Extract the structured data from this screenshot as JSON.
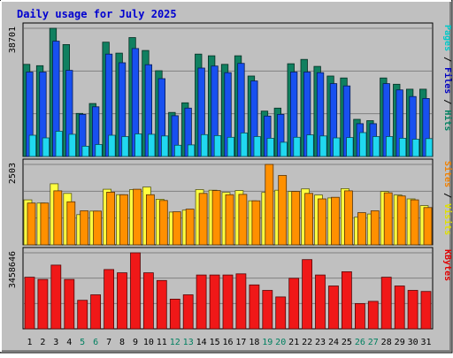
{
  "title": "Daily usage for July 2025",
  "chart_data": [
    {
      "type": "bar",
      "panel": "hits-files-pages",
      "categories": [
        "1",
        "2",
        "3",
        "4",
        "5",
        "6",
        "7",
        "8",
        "9",
        "10",
        "11",
        "12",
        "13",
        "14",
        "15",
        "16",
        "17",
        "18",
        "19",
        "20",
        "21",
        "22",
        "23",
        "24",
        "25",
        "26",
        "27",
        "28",
        "29",
        "30",
        "31"
      ],
      "weekend_days": [
        "5",
        "6",
        "12",
        "13",
        "19",
        "20",
        "26",
        "27"
      ],
      "ytick_label": "38701",
      "ylim": [
        0,
        38701
      ],
      "side_labels": [
        {
          "text": "Pages",
          "color": "#00c8c8"
        },
        {
          "text": " / ",
          "color": "#000000"
        },
        {
          "text": "Files",
          "color": "#0000c0"
        },
        {
          "text": " / ",
          "color": "#000000"
        },
        {
          "text": "Hits",
          "color": "#008060"
        }
      ],
      "series": [
        {
          "name": "Hits",
          "color": "#108060",
          "values": [
            27800,
            27400,
            38700,
            33800,
            13000,
            16000,
            34500,
            31200,
            35900,
            32000,
            25900,
            13300,
            16200,
            30900,
            30400,
            27800,
            30400,
            24300,
            13700,
            14600,
            28000,
            29300,
            27200,
            24300,
            23700,
            11200,
            10800,
            23700,
            21800,
            20300,
            20300
          ]
        },
        {
          "name": "Files",
          "color": "#1850f0",
          "values": [
            25500,
            25500,
            34800,
            26000,
            12700,
            15000,
            30900,
            28300,
            32600,
            27700,
            23500,
            12300,
            14600,
            26700,
            27300,
            25300,
            28100,
            22800,
            12200,
            12700,
            25500,
            25500,
            25300,
            22000,
            21300,
            9900,
            9900,
            22000,
            20100,
            18100,
            17500
          ]
        },
        {
          "name": "Pages",
          "color": "#20d8f0",
          "values": [
            6400,
            5600,
            7600,
            6700,
            3100,
            3600,
            6400,
            6000,
            6800,
            6700,
            6200,
            3400,
            3500,
            6600,
            6300,
            5800,
            7100,
            6000,
            5500,
            4300,
            5800,
            6500,
            6200,
            5600,
            5700,
            7200,
            6000,
            6000,
            5500,
            5200,
            5400
          ]
        }
      ]
    },
    {
      "type": "bar",
      "panel": "visits-sites",
      "categories": [
        "1",
        "2",
        "3",
        "4",
        "5",
        "6",
        "7",
        "8",
        "9",
        "10",
        "11",
        "12",
        "13",
        "14",
        "15",
        "16",
        "17",
        "18",
        "19",
        "20",
        "21",
        "22",
        "23",
        "24",
        "25",
        "26",
        "27",
        "28",
        "29",
        "30",
        "31"
      ],
      "ytick_label": "2503",
      "ylim": [
        0,
        2503
      ],
      "side_labels": [
        {
          "text": "Sites",
          "color": "#f08000"
        },
        {
          "text": " / ",
          "color": "#000000"
        },
        {
          "text": "Visits",
          "color": "#e0e000"
        }
      ],
      "series": [
        {
          "name": "Visits",
          "color": "#ffff40",
          "values": [
            1400,
            1300,
            1900,
            1600,
            940,
            1050,
            1730,
            1560,
            1720,
            1800,
            1420,
            1020,
            1080,
            1720,
            1700,
            1630,
            1690,
            1370,
            1630,
            1700,
            1660,
            1740,
            1550,
            1460,
            1750,
            860,
            960,
            1660,
            1550,
            1430,
            1220
          ]
        },
        {
          "name": "Sites",
          "color": "#ff9000",
          "values": [
            1300,
            1300,
            1680,
            1340,
            1060,
            1050,
            1640,
            1560,
            1730,
            1560,
            1380,
            1030,
            1110,
            1600,
            1690,
            1560,
            1570,
            1370,
            2503,
            2160,
            1660,
            1600,
            1430,
            1480,
            1680,
            1000,
            1060,
            1620,
            1520,
            1400,
            1160
          ]
        }
      ]
    },
    {
      "type": "bar",
      "panel": "kbytes",
      "categories": [
        "1",
        "2",
        "3",
        "4",
        "5",
        "6",
        "7",
        "8",
        "9",
        "10",
        "11",
        "12",
        "13",
        "14",
        "15",
        "16",
        "17",
        "18",
        "19",
        "20",
        "21",
        "22",
        "23",
        "24",
        "25",
        "26",
        "27",
        "28",
        "29",
        "30",
        "31"
      ],
      "ytick_label": "3458646",
      "ylim": [
        0,
        3458646
      ],
      "side_labels": [
        {
          "text": "KBytes",
          "color": "#e00000"
        }
      ],
      "series": [
        {
          "name": "KBytes",
          "color": "#f01818",
          "values": [
            2350000,
            2250000,
            2900000,
            2250000,
            1300000,
            1550000,
            2700000,
            2550000,
            3458646,
            2550000,
            2200000,
            1350000,
            1550000,
            2450000,
            2450000,
            2450000,
            2500000,
            2000000,
            1750000,
            1450000,
            2300000,
            3150000,
            2450000,
            1950000,
            2600000,
            1150000,
            1250000,
            2350000,
            1950000,
            1750000,
            1700000
          ]
        }
      ]
    }
  ]
}
